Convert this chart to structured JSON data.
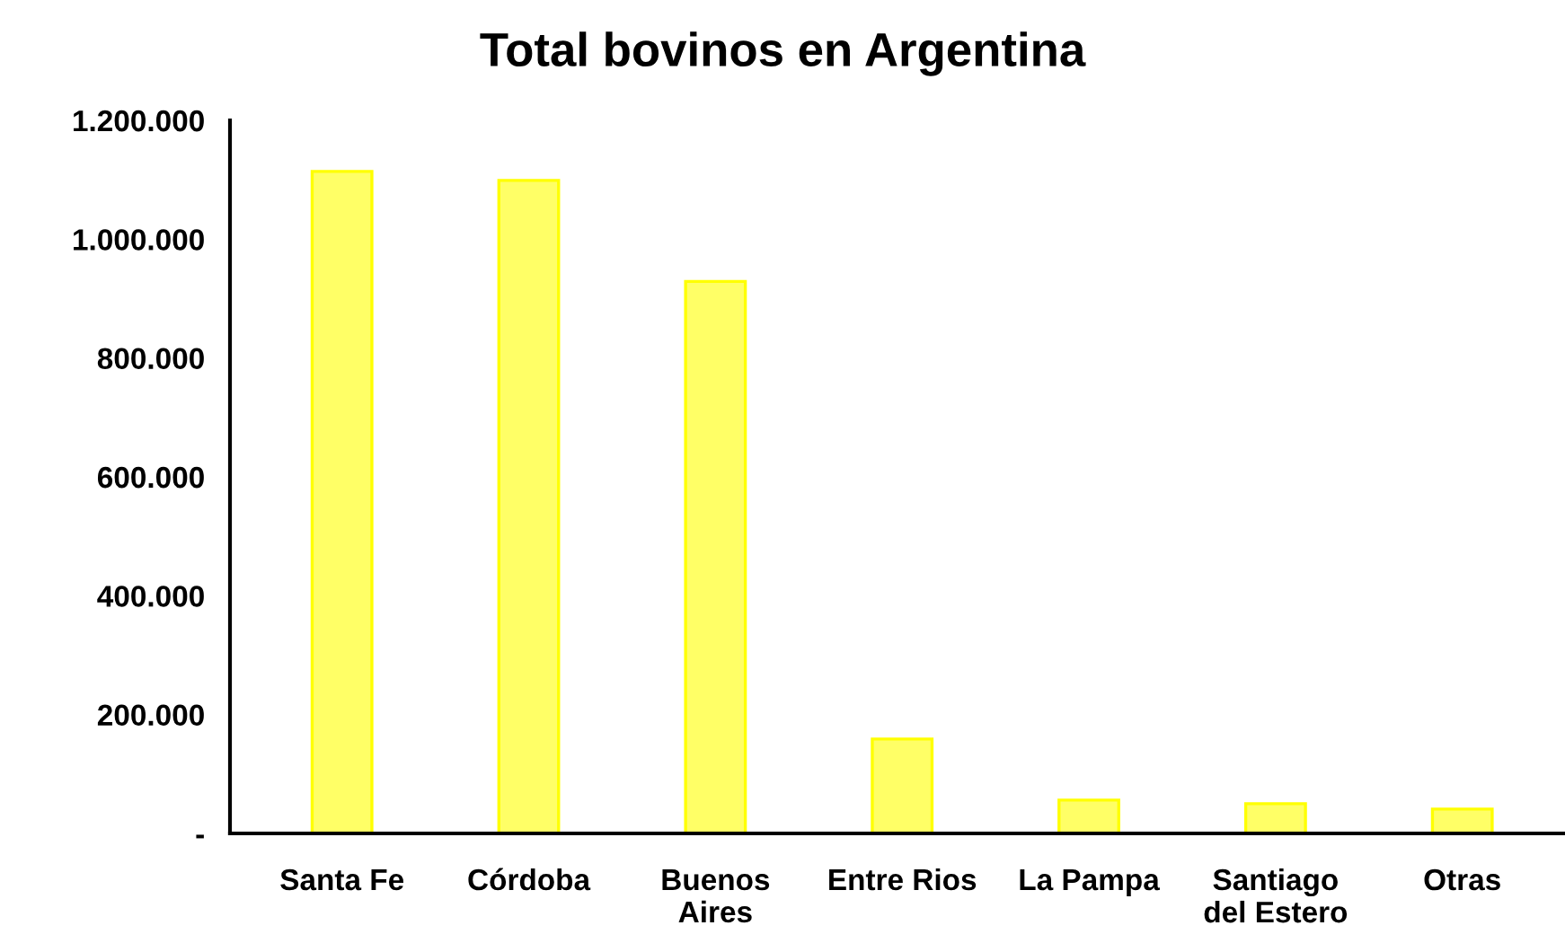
{
  "chart_data": {
    "type": "bar",
    "title": "Total bovinos en Argentina",
    "categories": [
      "Santa Fe",
      "Córdoba",
      "Buenos\nAires",
      "Entre Rios",
      "La Pampa",
      "Santiago\ndel Estero",
      "Otras"
    ],
    "values": [
      1114000,
      1099000,
      929000,
      159000,
      56000,
      50000,
      41000
    ],
    "color": "#ffff66",
    "ylim": [
      0,
      1200000
    ],
    "yticks": [
      {
        "value": 0,
        "label": "-"
      },
      {
        "value": 200000,
        "label": "200.000"
      },
      {
        "value": 400000,
        "label": "400.000"
      },
      {
        "value": 600000,
        "label": "600.000"
      },
      {
        "value": 800000,
        "label": "800.000"
      },
      {
        "value": 1000000,
        "label": "1.000.000"
      },
      {
        "value": 1200000,
        "label": "1.200.000"
      }
    ],
    "grid": false
  }
}
